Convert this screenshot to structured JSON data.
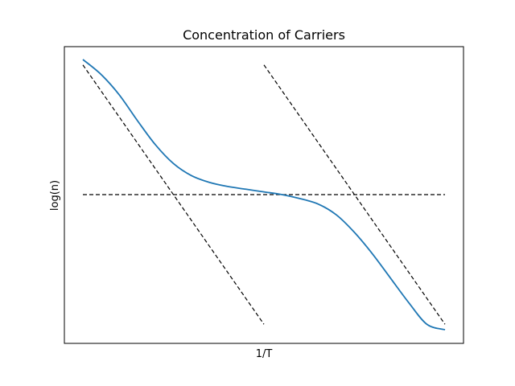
{
  "chart_data": {
    "type": "line",
    "title": "Concentration of Carriers",
    "xlabel": "1/T",
    "ylabel": "log(n)",
    "xticks": [],
    "yticks": [],
    "xlim": [
      0,
      1
    ],
    "ylim": [
      -0.55,
      0.55
    ],
    "grid": false,
    "series": [
      {
        "style": "solid",
        "color": "#1f77b4",
        "x": [
          0.0,
          0.05,
          0.1,
          0.15,
          0.2,
          0.25,
          0.3,
          0.35,
          0.4,
          0.45,
          0.5,
          0.55,
          0.6,
          0.65,
          0.7,
          0.75,
          0.8,
          0.85,
          0.9,
          0.95,
          1.0
        ],
        "y": [
          0.5,
          0.445,
          0.37,
          0.275,
          0.185,
          0.115,
          0.07,
          0.045,
          0.03,
          0.02,
          0.01,
          0.0,
          -0.015,
          -0.035,
          -0.075,
          -0.14,
          -0.22,
          -0.31,
          -0.4,
          -0.48,
          -0.5
        ]
      },
      {
        "style": "dashed",
        "color": "#000000",
        "x": [
          0.0,
          1.0
        ],
        "y": [
          0.0,
          0.0
        ]
      },
      {
        "style": "dashed",
        "color": "#000000",
        "x": [
          0.0,
          0.5
        ],
        "y": [
          0.48,
          -0.48
        ]
      },
      {
        "style": "dashed",
        "color": "#000000",
        "x": [
          0.5,
          1.0
        ],
        "y": [
          0.48,
          -0.48
        ]
      }
    ]
  }
}
